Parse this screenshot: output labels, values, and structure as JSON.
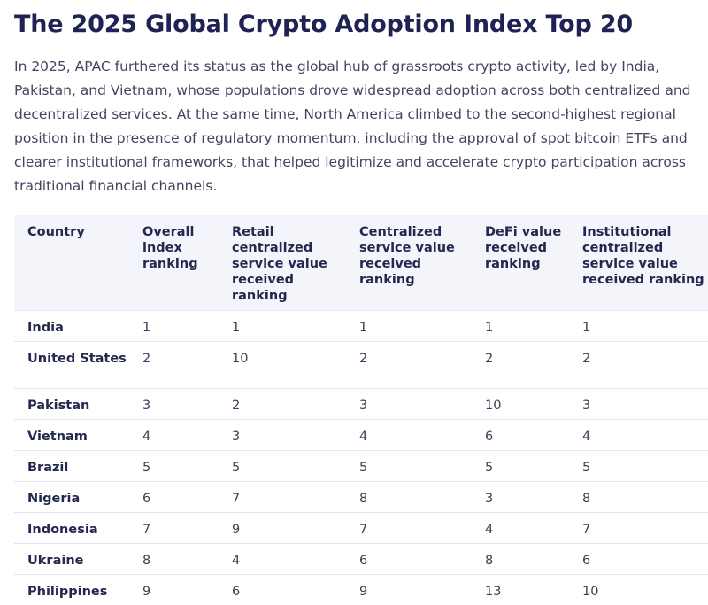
{
  "title": "The 2025 Global Crypto Adoption Index Top 20",
  "intro": "In 2025, APAC furthered its status as the global hub of grassroots crypto activity, led by India, Pakistan, and Vietnam, whose populations drove widespread adoption across both centralized and decentralized services. At the same time, North America climbed to the second-highest regional position in the presence of regulatory momentum, including the approval of spot bitcoin ETFs and clearer institutional frameworks, that helped legitimize and accelerate crypto participation across traditional financial channels.",
  "table": {
    "headers": [
      "Country",
      "Overall index ranking",
      "Retail centralized service value received ranking",
      "Centralized service value received ranking",
      "DeFi value received ranking",
      "Institutional centralized service value received ranking"
    ],
    "rows": [
      [
        "India",
        "1",
        "1",
        "1",
        "1",
        "1"
      ],
      [
        "United States",
        "2",
        "10",
        "2",
        "2",
        "2"
      ],
      [
        "Pakistan",
        "3",
        "2",
        "3",
        "10",
        "3"
      ],
      [
        "Vietnam",
        "4",
        "3",
        "4",
        "6",
        "4"
      ],
      [
        "Brazil",
        "5",
        "5",
        "5",
        "5",
        "5"
      ],
      [
        "Nigeria",
        "6",
        "7",
        "8",
        "3",
        "8"
      ],
      [
        "Indonesia",
        "7",
        "9",
        "7",
        "4",
        "7"
      ],
      [
        "Ukraine",
        "8",
        "4",
        "6",
        "8",
        "6"
      ],
      [
        "Philippines",
        "9",
        "6",
        "9",
        "13",
        "10"
      ]
    ]
  }
}
